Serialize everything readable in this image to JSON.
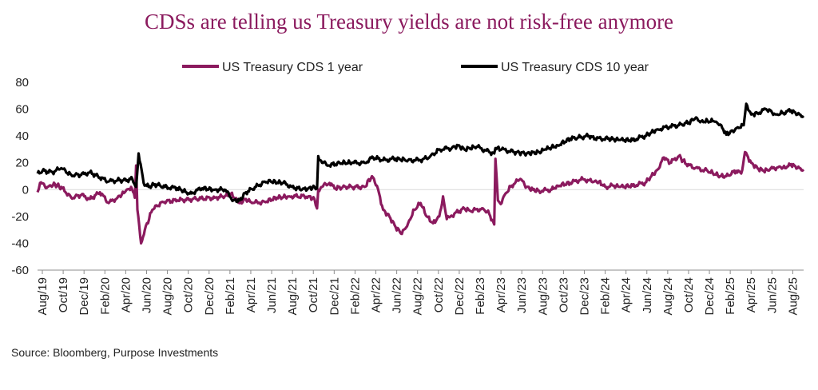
{
  "chart_data": {
    "type": "line",
    "title": "CDSs are telling us Treasury yields are not risk-free anymore",
    "xlabel": "",
    "ylabel": "",
    "ylim": [
      -60,
      80
    ],
    "yticks": [
      -60,
      -40,
      -20,
      0,
      20,
      40,
      60,
      80
    ],
    "xlim": [
      2019.58,
      2025.72
    ],
    "xtick_labels": [
      "Aug/19",
      "Oct/19",
      "Dec/19",
      "Feb/20",
      "Apr/20",
      "Jun/20",
      "Aug/20",
      "Oct/20",
      "Dec/20",
      "Feb/21",
      "Apr/21",
      "Jun/21",
      "Aug/21",
      "Oct/21",
      "Dec/21",
      "Feb/22",
      "Apr/22",
      "Jun/22",
      "Aug/22",
      "Oct/22",
      "Dec/22",
      "Feb/23",
      "Apr/23",
      "Jun/23",
      "Aug/23",
      "Oct/23",
      "Dec/23",
      "Feb/24",
      "Apr/24",
      "Jun/24",
      "Aug/24",
      "Oct/24",
      "Dec/24",
      "Feb/25",
      "Apr/25",
      "Jun/25",
      "Aug/25"
    ],
    "legend_position": "top",
    "series": [
      {
        "name": "US Treasury CDS 1 year",
        "color": "#8B1A5E",
        "points": [
          [
            2019.58,
            -2
          ],
          [
            2019.6,
            5
          ],
          [
            2019.66,
            2
          ],
          [
            2019.72,
            4
          ],
          [
            2019.78,
            1
          ],
          [
            2019.85,
            -6
          ],
          [
            2019.93,
            -4
          ],
          [
            2020.0,
            -7
          ],
          [
            2020.08,
            -2
          ],
          [
            2020.15,
            -10
          ],
          [
            2020.22,
            -6
          ],
          [
            2020.28,
            -2
          ],
          [
            2020.33,
            2
          ],
          [
            2020.36,
            -6
          ],
          [
            2020.37,
            18
          ],
          [
            2020.38,
            -15
          ],
          [
            2020.41,
            -40
          ],
          [
            2020.44,
            -30
          ],
          [
            2020.5,
            -15
          ],
          [
            2020.58,
            -9
          ],
          [
            2020.7,
            -8
          ],
          [
            2020.85,
            -7
          ],
          [
            2021.0,
            -6
          ],
          [
            2021.08,
            -5
          ],
          [
            2021.13,
            -3
          ],
          [
            2021.18,
            -8
          ],
          [
            2021.2,
            -10
          ],
          [
            2021.25,
            -7
          ],
          [
            2021.3,
            -10
          ],
          [
            2021.4,
            -9
          ],
          [
            2021.5,
            -6
          ],
          [
            2021.6,
            -5
          ],
          [
            2021.75,
            -5
          ],
          [
            2021.8,
            -7
          ],
          [
            2021.82,
            -14
          ],
          [
            2021.83,
            0
          ],
          [
            2021.86,
            2
          ],
          [
            2021.92,
            5
          ],
          [
            2021.96,
            1
          ],
          [
            2022.05,
            2
          ],
          [
            2022.2,
            2
          ],
          [
            2022.26,
            10
          ],
          [
            2022.3,
            3
          ],
          [
            2022.35,
            -15
          ],
          [
            2022.4,
            -20
          ],
          [
            2022.45,
            -28
          ],
          [
            2022.5,
            -33
          ],
          [
            2022.55,
            -25
          ],
          [
            2022.6,
            -15
          ],
          [
            2022.65,
            -10
          ],
          [
            2022.7,
            -20
          ],
          [
            2022.75,
            -25
          ],
          [
            2022.8,
            -20
          ],
          [
            2022.83,
            -5
          ],
          [
            2022.86,
            -22
          ],
          [
            2022.92,
            -18
          ],
          [
            2023.0,
            -14
          ],
          [
            2023.05,
            -16
          ],
          [
            2023.15,
            -14
          ],
          [
            2023.2,
            -18
          ],
          [
            2023.24,
            -26
          ],
          [
            2023.25,
            23
          ],
          [
            2023.27,
            -8
          ],
          [
            2023.3,
            -10
          ],
          [
            2023.33,
            -3
          ],
          [
            2023.38,
            3
          ],
          [
            2023.45,
            8
          ],
          [
            2023.5,
            2
          ],
          [
            2023.55,
            0
          ],
          [
            2023.6,
            -1
          ],
          [
            2023.7,
            0
          ],
          [
            2023.75,
            3
          ],
          [
            2023.85,
            5
          ],
          [
            2023.95,
            8
          ],
          [
            2024.02,
            6
          ],
          [
            2024.08,
            6
          ],
          [
            2024.13,
            2
          ],
          [
            2024.2,
            3
          ],
          [
            2024.25,
            2
          ],
          [
            2024.35,
            3
          ],
          [
            2024.45,
            5
          ],
          [
            2024.5,
            10
          ],
          [
            2024.55,
            15
          ],
          [
            2024.6,
            24
          ],
          [
            2024.65,
            20
          ],
          [
            2024.72,
            25
          ],
          [
            2024.78,
            19
          ],
          [
            2024.85,
            16
          ],
          [
            2024.95,
            14
          ],
          [
            2025.05,
            10
          ],
          [
            2025.1,
            10
          ],
          [
            2025.18,
            14
          ],
          [
            2025.22,
            12
          ],
          [
            2025.25,
            28
          ],
          [
            2025.3,
            20
          ],
          [
            2025.35,
            16
          ],
          [
            2025.4,
            14
          ],
          [
            2025.45,
            15
          ],
          [
            2025.52,
            17
          ],
          [
            2025.58,
            16
          ],
          [
            2025.62,
            19
          ],
          [
            2025.67,
            16
          ],
          [
            2025.72,
            15
          ]
        ]
      },
      {
        "name": "US Treasury CDS 10 year",
        "color": "#000000",
        "points": [
          [
            2019.58,
            12
          ],
          [
            2019.62,
            14
          ],
          [
            2019.7,
            13
          ],
          [
            2019.77,
            16
          ],
          [
            2019.85,
            11
          ],
          [
            2019.93,
            11
          ],
          [
            2020.0,
            13
          ],
          [
            2020.08,
            9
          ],
          [
            2020.15,
            6
          ],
          [
            2020.22,
            7
          ],
          [
            2020.3,
            7
          ],
          [
            2020.34,
            8
          ],
          [
            2020.37,
            2
          ],
          [
            2020.39,
            27
          ],
          [
            2020.43,
            5
          ],
          [
            2020.47,
            2
          ],
          [
            2020.52,
            4
          ],
          [
            2020.6,
            2
          ],
          [
            2020.7,
            1
          ],
          [
            2020.8,
            -3
          ],
          [
            2020.9,
            1
          ],
          [
            2021.0,
            0
          ],
          [
            2021.08,
            0
          ],
          [
            2021.15,
            -8
          ],
          [
            2021.2,
            -8
          ],
          [
            2021.25,
            -2
          ],
          [
            2021.33,
            2
          ],
          [
            2021.4,
            6
          ],
          [
            2021.45,
            6
          ],
          [
            2021.55,
            5
          ],
          [
            2021.62,
            2
          ],
          [
            2021.7,
            0
          ],
          [
            2021.75,
            1
          ],
          [
            2021.8,
            2
          ],
          [
            2021.82,
            1
          ],
          [
            2021.83,
            25
          ],
          [
            2021.86,
            20
          ],
          [
            2021.92,
            18
          ],
          [
            2022.0,
            20
          ],
          [
            2022.1,
            20
          ],
          [
            2022.2,
            20
          ],
          [
            2022.27,
            24
          ],
          [
            2022.35,
            22
          ],
          [
            2022.45,
            23
          ],
          [
            2022.55,
            22
          ],
          [
            2022.65,
            22
          ],
          [
            2022.72,
            24
          ],
          [
            2022.8,
            30
          ],
          [
            2022.9,
            31
          ],
          [
            2022.95,
            33
          ],
          [
            2023.0,
            30
          ],
          [
            2023.1,
            32
          ],
          [
            2023.2,
            28
          ],
          [
            2023.24,
            27
          ],
          [
            2023.25,
            31
          ],
          [
            2023.3,
            30
          ],
          [
            2023.4,
            28
          ],
          [
            2023.5,
            27
          ],
          [
            2023.6,
            28
          ],
          [
            2023.65,
            30
          ],
          [
            2023.75,
            33
          ],
          [
            2023.85,
            38
          ],
          [
            2023.93,
            39
          ],
          [
            2024.0,
            40
          ],
          [
            2024.05,
            38
          ],
          [
            2024.15,
            38
          ],
          [
            2024.25,
            37
          ],
          [
            2024.35,
            37
          ],
          [
            2024.45,
            40
          ],
          [
            2024.55,
            45
          ],
          [
            2024.65,
            47
          ],
          [
            2024.72,
            48
          ],
          [
            2024.8,
            50
          ],
          [
            2024.85,
            53
          ],
          [
            2024.9,
            51
          ],
          [
            2025.0,
            51
          ],
          [
            2025.06,
            48
          ],
          [
            2025.1,
            41
          ],
          [
            2025.15,
            44
          ],
          [
            2025.2,
            46
          ],
          [
            2025.24,
            48
          ],
          [
            2025.26,
            64
          ],
          [
            2025.3,
            56
          ],
          [
            2025.35,
            57
          ],
          [
            2025.42,
            60
          ],
          [
            2025.5,
            56
          ],
          [
            2025.55,
            57
          ],
          [
            2025.62,
            59
          ],
          [
            2025.67,
            56
          ],
          [
            2025.72,
            55
          ]
        ]
      }
    ]
  },
  "footer": {
    "source": "Source: Bloomberg, Purpose Investments"
  }
}
